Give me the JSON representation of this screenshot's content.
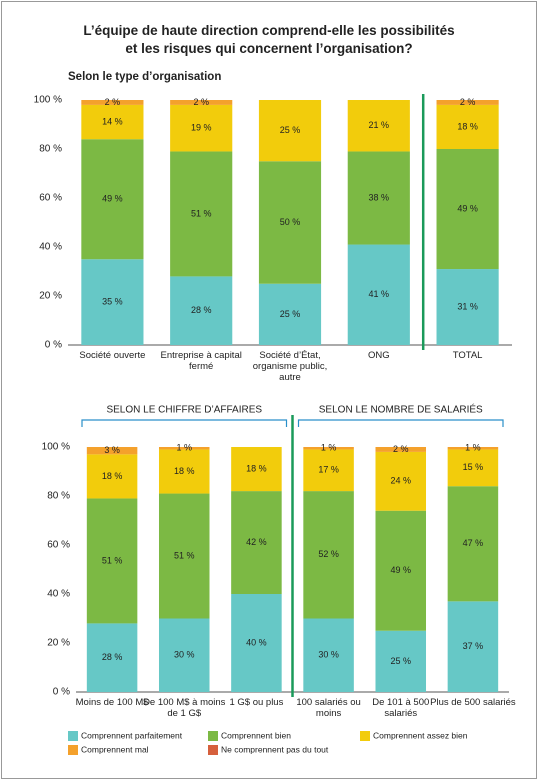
{
  "chart_data": [
    {
      "type": "bar",
      "stacked": true,
      "title": "L’équipe de haute direction comprend-elle les possibilités et les risques qui concernent l’organisation?",
      "subtitle": "Selon le type d’organisation",
      "groups": [
        {
          "categories": [
            "Société ouverte",
            "Entreprise à capital fermé",
            "Société d’État, organisme public, autre",
            "ONG"
          ]
        },
        {
          "categories": [
            "TOTAL"
          ]
        }
      ],
      "ylim": [
        0,
        100
      ],
      "yticks": [
        {
          "value": 0,
          "label": "0 %"
        },
        {
          "value": 20,
          "label": "20 %"
        },
        {
          "value": 40,
          "label": "40 %"
        },
        {
          "value": 60,
          "label": "60 %"
        },
        {
          "value": 80,
          "label": "80 %"
        },
        {
          "value": 100,
          "label": "100 %"
        }
      ],
      "grid": false,
      "series": [
        {
          "name": "Comprennent parfaitement",
          "color": "#66c8c6",
          "values": [
            35,
            28,
            25,
            41,
            31
          ],
          "value_labels": [
            "35 %",
            "28 %",
            "25 %",
            "41 %",
            "31 %"
          ]
        },
        {
          "name": "Comprennent bien",
          "color": "#7cb944",
          "values": [
            49,
            51,
            50,
            38,
            49
          ],
          "value_labels": [
            "49 %",
            "51 %",
            "50 %",
            "38 %",
            "49 %"
          ]
        },
        {
          "name": "Comprennent assez bien",
          "color": "#f2cc0c",
          "values": [
            14,
            19,
            25,
            21,
            18
          ],
          "value_labels": [
            "14 %",
            "19 %",
            "25 %",
            "21 %",
            "18 %"
          ]
        },
        {
          "name": "Comprennent mal",
          "color": "#f4a12c",
          "values": [
            2,
            2,
            null,
            null,
            2
          ],
          "value_labels": [
            "2 %",
            "2 %",
            null,
            null,
            "2 %"
          ]
        },
        {
          "name": "Ne comprennent pas du tout",
          "color": "#d6603d",
          "values": [
            null,
            null,
            null,
            null,
            null
          ],
          "value_labels": [
            null,
            null,
            null,
            null,
            null
          ]
        }
      ]
    },
    {
      "type": "bar",
      "stacked": true,
      "groups": [
        {
          "label": "SELON LE CHIFFRE D’AFFAIRES",
          "categories": [
            "Moins de 100 M$",
            "De 100 M$ à moins de 1 G$",
            "1 G$ ou plus"
          ]
        },
        {
          "label": "SELON LE NOMBRE DE SALARIÉS",
          "categories": [
            "100 salariés ou moins",
            "De 101 à 500 salariés",
            "Plus de 500 salariés"
          ]
        }
      ],
      "ylim": [
        0,
        100
      ],
      "yticks": [
        {
          "value": 0,
          "label": "0 %"
        },
        {
          "value": 20,
          "label": "20 %"
        },
        {
          "value": 40,
          "label": "40 %"
        },
        {
          "value": 60,
          "label": "60 %"
        },
        {
          "value": 80,
          "label": "80 %"
        },
        {
          "value": 100,
          "label": "100 %"
        }
      ],
      "grid": false,
      "series": [
        {
          "name": "Comprennent parfaitement",
          "color": "#66c8c6",
          "values": [
            28,
            30,
            40,
            30,
            25,
            37
          ],
          "value_labels": [
            "28 %",
            "30 %",
            "40 %",
            "30 %",
            "25 %",
            "37 %"
          ]
        },
        {
          "name": "Comprennent bien",
          "color": "#7cb944",
          "values": [
            51,
            51,
            42,
            52,
            49,
            47
          ],
          "value_labels": [
            "51 %",
            "51 %",
            "42 %",
            "52 %",
            "49 %",
            "47 %"
          ]
        },
        {
          "name": "Comprennent assez bien",
          "color": "#f2cc0c",
          "values": [
            18,
            18,
            18,
            17,
            24,
            15
          ],
          "value_labels": [
            "18 %",
            "18 %",
            "18 %",
            "17 %",
            "24 %",
            "15 %"
          ]
        },
        {
          "name": "Comprennent mal",
          "color": "#f4a12c",
          "values": [
            3,
            1,
            null,
            1,
            2,
            1
          ],
          "value_labels": [
            "3 %",
            "1 %",
            null,
            "1 %",
            "2 %",
            "1 %"
          ]
        },
        {
          "name": "Ne comprennent pas du tout",
          "color": "#d6603d",
          "values": [
            null,
            null,
            null,
            null,
            null,
            null
          ],
          "value_labels": [
            null,
            null,
            null,
            null,
            null,
            null
          ]
        }
      ]
    }
  ]
}
